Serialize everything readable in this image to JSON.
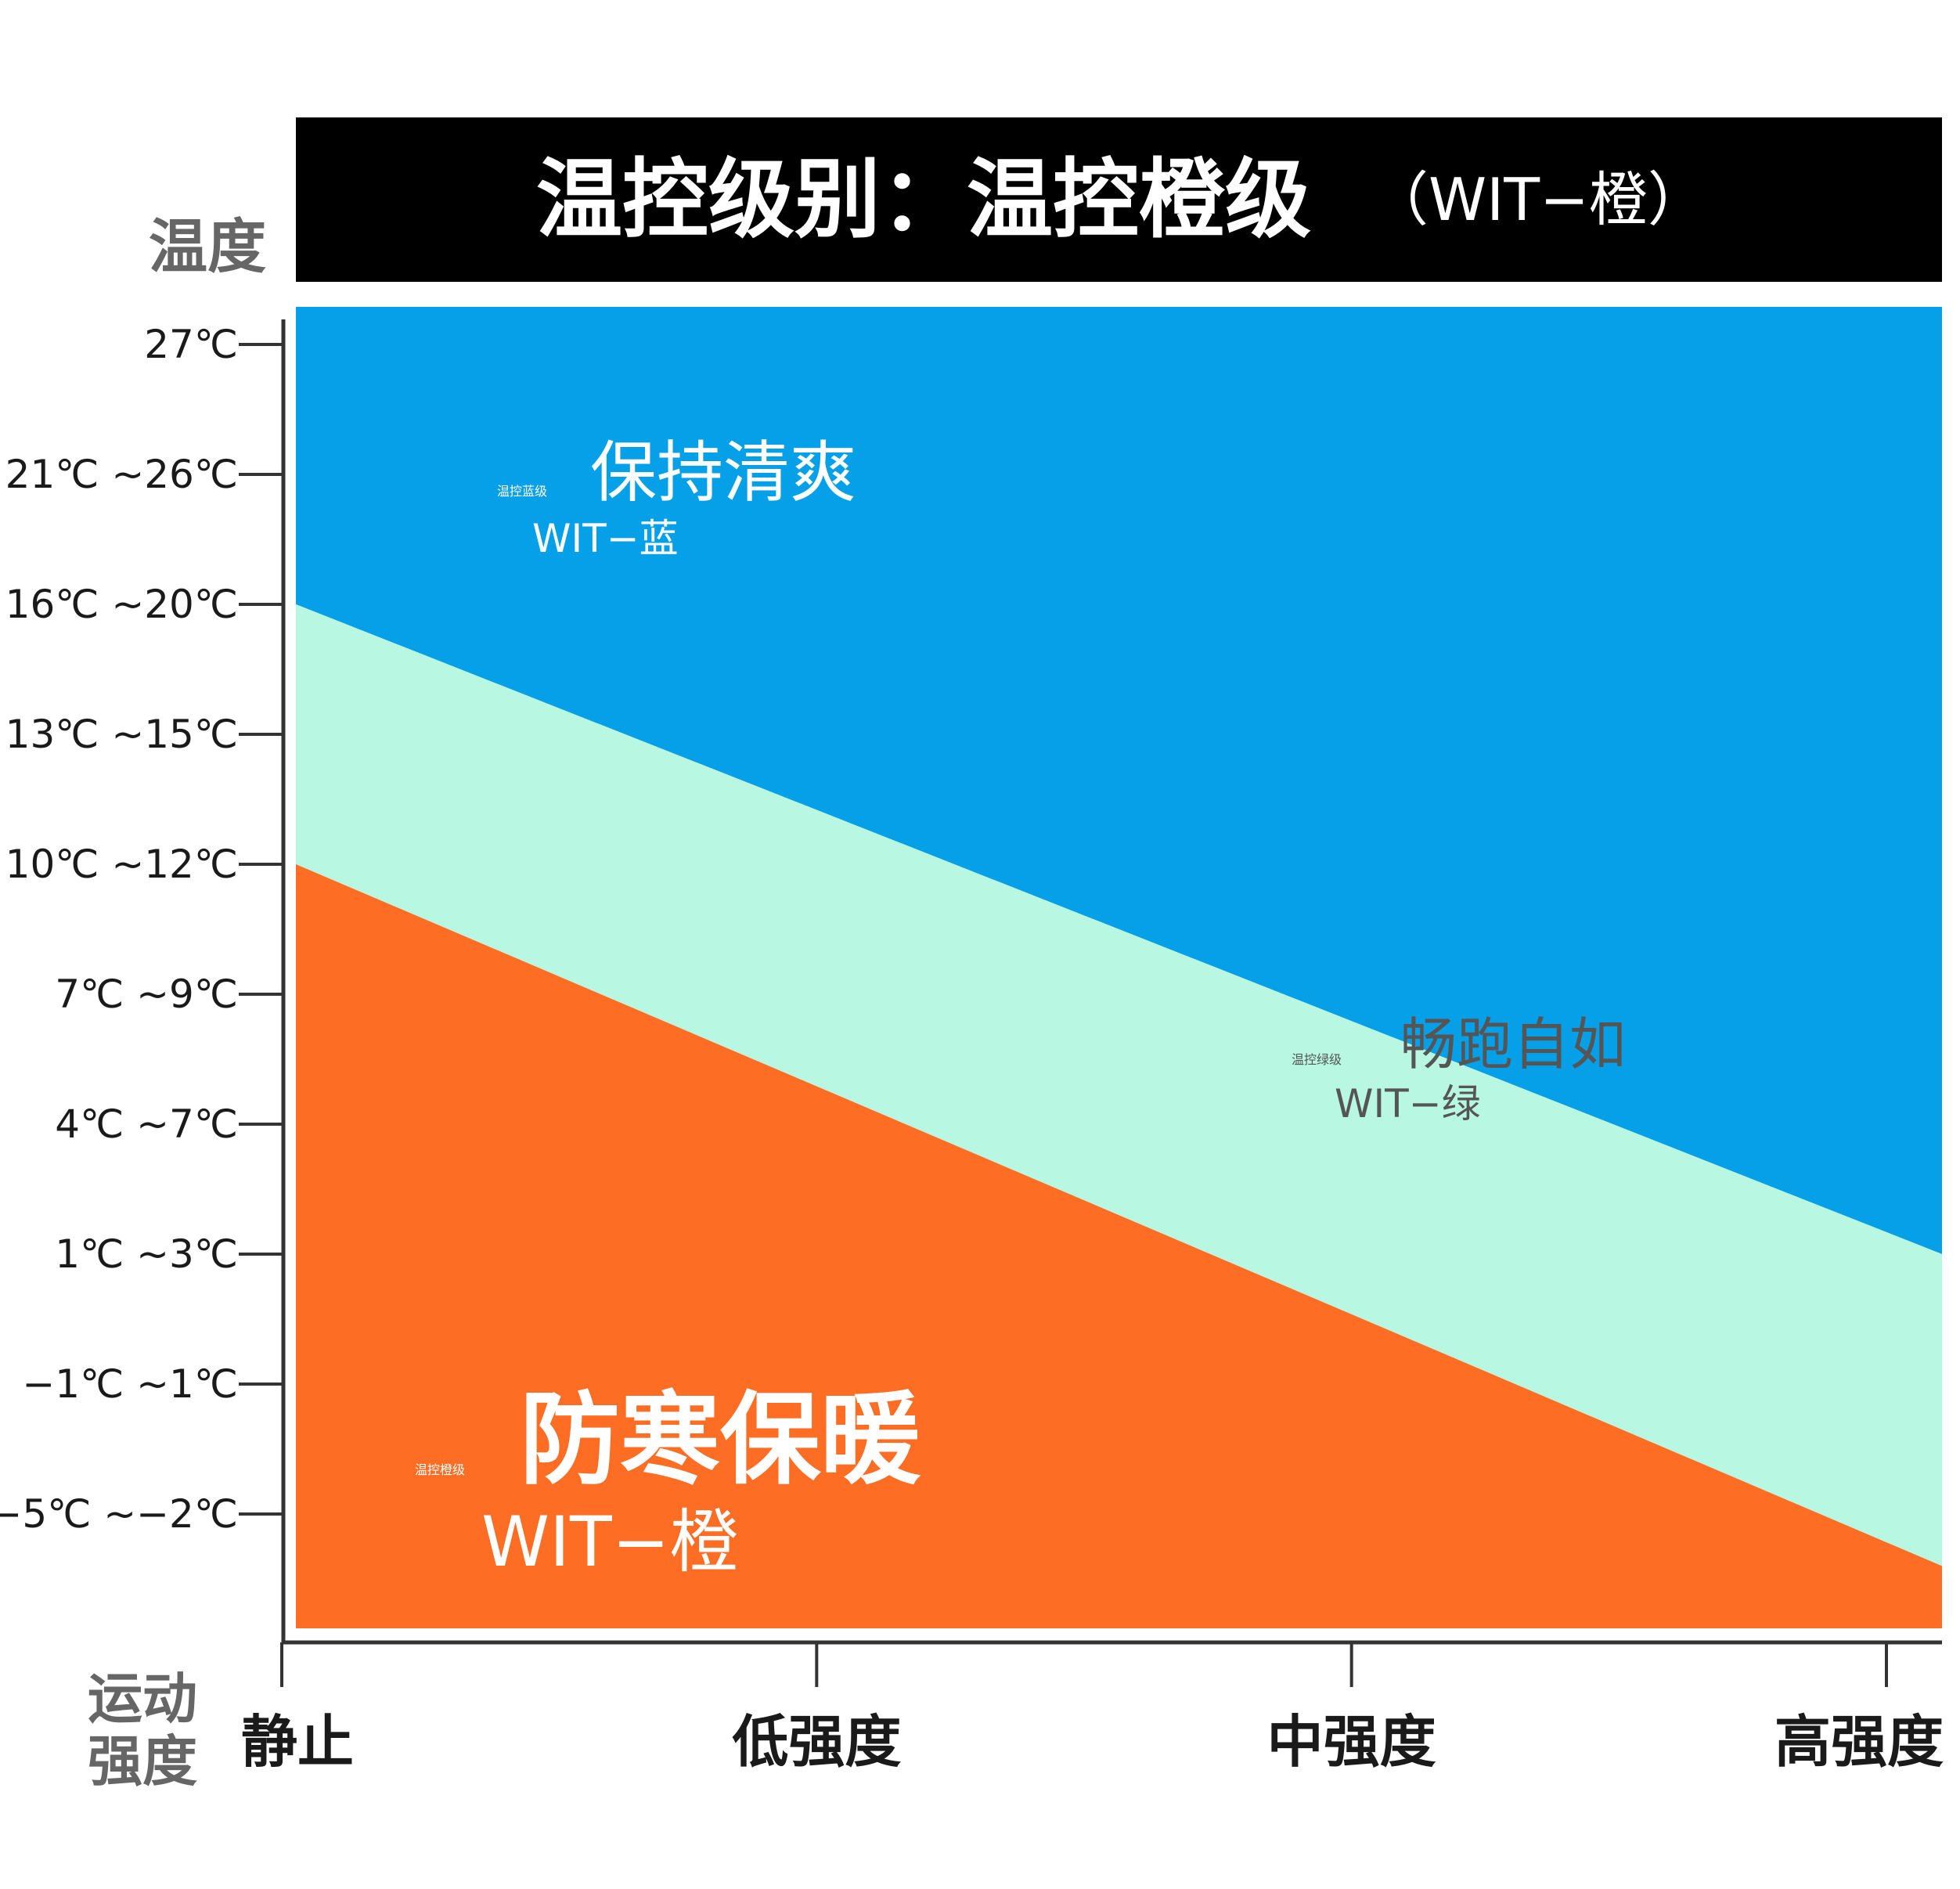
{
  "title": {
    "main": "温控级别：温控橙级",
    "sub": "（WIT−橙）"
  },
  "chart_data": {
    "type": "area",
    "title": "温控级别：温控橙级（WIT−橙）",
    "ylabel": "温度",
    "xlabel": "运动强度",
    "y_ticks": [
      "27℃",
      "21℃ ~26℃",
      "16℃ ~20℃",
      "13℃ ~15℃",
      "10℃ ~12℃",
      "7℃ ~9℃",
      "4℃ ~7℃",
      "1℃ ~3℃",
      "−1℃ ~1℃",
      "−5℃ ~−2℃"
    ],
    "x_ticks": [
      "静止",
      "低强度",
      "中强度",
      "高强度"
    ],
    "x": [
      0,
      3
    ],
    "boundaries": {
      "blue_green": [
        2.0,
        7.0
      ],
      "green_orange": [
        4.0,
        9.4
      ]
    },
    "bands": [
      {
        "name": "温控蓝级",
        "slogan": "保持清爽",
        "code": "WIT−蓝",
        "color": "#06a0e8"
      },
      {
        "name": "温控绿级",
        "slogan": "畅跑自如",
        "code": "WIT−绿",
        "color": "#b8f8e2"
      },
      {
        "name": "温控橙级",
        "slogan": "防寒保暖",
        "code": "WIT−橙",
        "color": "#fd6d24"
      }
    ]
  }
}
